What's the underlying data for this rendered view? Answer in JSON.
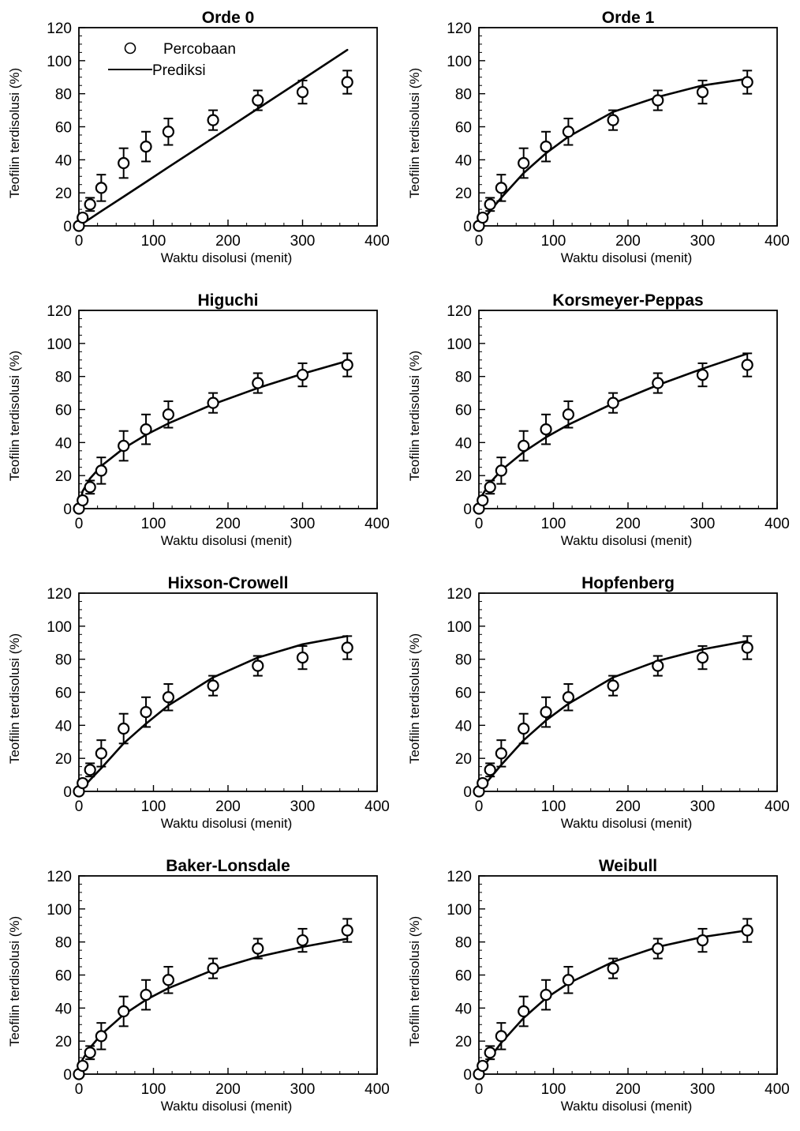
{
  "chart_data": [
    {
      "type": "line",
      "title": "Orde 0",
      "xlabel": "Waktu disolusi (menit)",
      "ylabel": "Teofilin terdisolusi (%)",
      "xlim": [
        0,
        400
      ],
      "ylim": [
        0,
        120
      ],
      "xticks": [
        "0",
        "100",
        "200",
        "300",
        "400"
      ],
      "yticks": [
        "0",
        "20",
        "40",
        "60",
        "80",
        "100",
        "120"
      ],
      "legend": [
        "Percobaan",
        "Prediksi"
      ],
      "legend_position": "top-left",
      "observed": {
        "x": [
          0,
          5,
          15,
          30,
          60,
          90,
          120,
          180,
          240,
          300,
          360
        ],
        "y": [
          0,
          5,
          13,
          23,
          38,
          48,
          57,
          64,
          76,
          81,
          87
        ],
        "err": [
          0,
          2,
          4,
          8,
          9,
          9,
          8,
          6,
          6,
          7,
          7
        ]
      },
      "predicted": {
        "x": [
          0,
          5,
          15,
          30,
          60,
          90,
          120,
          180,
          240,
          300,
          360
        ],
        "y": [
          0,
          1.5,
          4.4,
          8.9,
          17.7,
          26.6,
          35.5,
          53.2,
          71.0,
          88.7,
          106.5
        ]
      }
    },
    {
      "type": "line",
      "title": "Orde 1",
      "xlabel": "Waktu disolusi (menit)",
      "ylabel": "Teofilin terdisolusi (%)",
      "xlim": [
        0,
        400
      ],
      "ylim": [
        0,
        120
      ],
      "xticks": [
        "0",
        "100",
        "200",
        "300",
        "400"
      ],
      "yticks": [
        "0",
        "20",
        "40",
        "60",
        "80",
        "100",
        "120"
      ],
      "observed": {
        "x": [
          0,
          5,
          15,
          30,
          60,
          90,
          120,
          180,
          240,
          300,
          360
        ],
        "y": [
          0,
          5,
          13,
          23,
          38,
          48,
          57,
          64,
          76,
          81,
          87
        ],
        "err": [
          0,
          2,
          4,
          8,
          9,
          9,
          8,
          6,
          6,
          7,
          7
        ]
      },
      "predicted": {
        "x": [
          0,
          5,
          15,
          30,
          60,
          90,
          120,
          180,
          240,
          300,
          360
        ],
        "y": [
          0,
          3,
          9,
          17,
          32,
          44,
          54,
          69,
          78,
          85,
          89
        ]
      }
    },
    {
      "type": "line",
      "title": "Higuchi",
      "xlabel": "Waktu disolusi (menit)",
      "ylabel": "Teofilin terdisolusi (%)",
      "xlim": [
        0,
        400
      ],
      "ylim": [
        0,
        120
      ],
      "xticks": [
        "0",
        "100",
        "200",
        "300",
        "400"
      ],
      "yticks": [
        "0",
        "20",
        "40",
        "60",
        "80",
        "100",
        "120"
      ],
      "observed": {
        "x": [
          0,
          5,
          15,
          30,
          60,
          90,
          120,
          180,
          240,
          300,
          360
        ],
        "y": [
          0,
          5,
          13,
          23,
          38,
          48,
          57,
          64,
          76,
          81,
          87
        ],
        "err": [
          0,
          2,
          4,
          8,
          9,
          9,
          8,
          6,
          6,
          7,
          7
        ]
      },
      "predicted": {
        "x": [
          0,
          5,
          15,
          30,
          60,
          90,
          120,
          180,
          240,
          300,
          360
        ],
        "y": [
          0,
          10.5,
          18.3,
          25.8,
          36.5,
          44.7,
          51.6,
          63.2,
          73.0,
          81.6,
          89.4
        ]
      }
    },
    {
      "type": "line",
      "title": "Korsmeyer-Peppas",
      "xlabel": "Waktu disolusi (menit)",
      "ylabel": "Teofilin terdisolusi (%)",
      "xlim": [
        0,
        400
      ],
      "ylim": [
        0,
        120
      ],
      "xticks": [
        "0",
        "100",
        "200",
        "300",
        "400"
      ],
      "yticks": [
        "0",
        "20",
        "40",
        "60",
        "80",
        "100",
        "120"
      ],
      "observed": {
        "x": [
          0,
          5,
          15,
          30,
          60,
          90,
          120,
          180,
          240,
          300,
          360
        ],
        "y": [
          0,
          5,
          13,
          23,
          38,
          48,
          57,
          64,
          76,
          81,
          87
        ],
        "err": [
          0,
          2,
          4,
          8,
          9,
          9,
          8,
          6,
          6,
          7,
          7
        ]
      },
      "predicted": {
        "x": [
          0,
          5,
          15,
          30,
          60,
          90,
          120,
          180,
          240,
          300,
          360
        ],
        "y": [
          0,
          8.5,
          15.7,
          23.2,
          34.3,
          43.2,
          50.8,
          63.7,
          74.8,
          84.7,
          93.8
        ]
      }
    },
    {
      "type": "line",
      "title": "Hixson-Crowell",
      "xlabel": "Waktu disolusi (menit)",
      "ylabel": "Teofilin terdisolusi (%)",
      "xlim": [
        0,
        400
      ],
      "ylim": [
        0,
        120
      ],
      "xticks": [
        "0",
        "100",
        "200",
        "300",
        "400"
      ],
      "yticks": [
        "0",
        "20",
        "40",
        "60",
        "80",
        "100",
        "120"
      ],
      "observed": {
        "x": [
          0,
          5,
          15,
          30,
          60,
          90,
          120,
          180,
          240,
          300,
          360
        ],
        "y": [
          0,
          5,
          13,
          23,
          38,
          48,
          57,
          64,
          76,
          81,
          87
        ],
        "err": [
          0,
          2,
          4,
          8,
          9,
          9,
          8,
          6,
          6,
          7,
          7
        ]
      },
      "predicted": {
        "x": [
          0,
          5,
          15,
          30,
          60,
          90,
          120,
          180,
          240,
          300,
          360
        ],
        "y": [
          0,
          2,
          7,
          14,
          29,
          41,
          52,
          69,
          81,
          89,
          94
        ]
      }
    },
    {
      "type": "line",
      "title": "Hopfenberg",
      "xlabel": "Waktu disolusi (menit)",
      "ylabel": "Teofilin terdisolusi (%)",
      "xlim": [
        0,
        400
      ],
      "ylim": [
        0,
        120
      ],
      "xticks": [
        "0",
        "100",
        "200",
        "300",
        "400"
      ],
      "yticks": [
        "0",
        "20",
        "40",
        "60",
        "80",
        "100",
        "120"
      ],
      "observed": {
        "x": [
          0,
          5,
          15,
          30,
          60,
          90,
          120,
          180,
          240,
          300,
          360
        ],
        "y": [
          0,
          5,
          13,
          23,
          38,
          48,
          57,
          64,
          76,
          81,
          87
        ],
        "err": [
          0,
          2,
          4,
          8,
          9,
          9,
          8,
          6,
          6,
          7,
          7
        ]
      },
      "predicted": {
        "x": [
          0,
          5,
          15,
          30,
          60,
          90,
          120,
          180,
          240,
          300,
          360
        ],
        "y": [
          0,
          2.5,
          8,
          16,
          31,
          43,
          53,
          69,
          79,
          86,
          91
        ]
      }
    },
    {
      "type": "line",
      "title": "Baker-Lonsdale",
      "xlabel": "Waktu disolusi (menit)",
      "ylabel": "Teofilin terdisolusi (%)",
      "xlim": [
        0,
        400
      ],
      "ylim": [
        0,
        120
      ],
      "xticks": [
        "0",
        "100",
        "200",
        "300",
        "400"
      ],
      "yticks": [
        "0",
        "20",
        "40",
        "60",
        "80",
        "100",
        "120"
      ],
      "observed": {
        "x": [
          0,
          5,
          15,
          30,
          60,
          90,
          120,
          180,
          240,
          300,
          360
        ],
        "y": [
          0,
          5,
          13,
          23,
          38,
          48,
          57,
          64,
          76,
          81,
          87
        ],
        "err": [
          0,
          2,
          4,
          8,
          9,
          9,
          8,
          6,
          6,
          7,
          7
        ]
      },
      "predicted": {
        "x": [
          0,
          5,
          15,
          30,
          60,
          90,
          120,
          180,
          240,
          300,
          360
        ],
        "y": [
          0,
          9,
          16,
          24,
          36,
          45,
          52,
          63,
          71,
          77,
          82
        ]
      }
    },
    {
      "type": "line",
      "title": "Weibull",
      "xlabel": "Waktu disolusi (menit)",
      "ylabel": "Teofilin terdisolusi (%)",
      "xlim": [
        0,
        400
      ],
      "ylim": [
        0,
        120
      ],
      "xticks": [
        "0",
        "100",
        "200",
        "300",
        "400"
      ],
      "yticks": [
        "0",
        "20",
        "40",
        "60",
        "80",
        "100",
        "120"
      ],
      "observed": {
        "x": [
          0,
          5,
          15,
          30,
          60,
          90,
          120,
          180,
          240,
          300,
          360
        ],
        "y": [
          0,
          5,
          13,
          23,
          38,
          48,
          57,
          64,
          76,
          81,
          87
        ],
        "err": [
          0,
          2,
          4,
          8,
          9,
          9,
          8,
          6,
          6,
          7,
          7
        ]
      },
      "predicted": {
        "x": [
          0,
          5,
          15,
          30,
          60,
          90,
          120,
          180,
          240,
          300,
          360
        ],
        "y": [
          0,
          4,
          10,
          19,
          34,
          46,
          55,
          68,
          77,
          83,
          87
        ]
      }
    }
  ]
}
